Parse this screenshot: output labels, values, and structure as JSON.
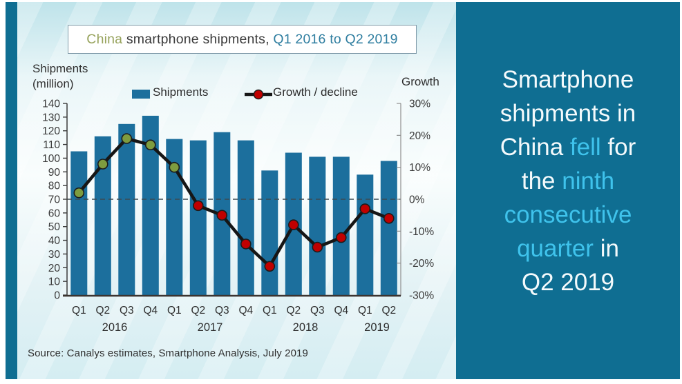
{
  "colors": {
    "teal_dark": "#0f6e92",
    "bar_blue": "#1c6f9d",
    "cyan_highlight": "#3fc3ec",
    "headline_white": "#f4fafc",
    "title_olive": "#97a35c",
    "title_dark": "#3b3b3b",
    "title_teal": "#2f7ea0",
    "line_black": "#161616",
    "marker_positive": "#7e9c3f",
    "marker_negative": "#c00000",
    "marker_outline": "#1c1c1c",
    "zero_line": "#3d4a52",
    "axis_dark": "#3a3a3a",
    "axis_right": "#909090",
    "axis_bottom": "#3b3430"
  },
  "title": {
    "segments": [
      {
        "text": "China ",
        "color_key": "title_olive"
      },
      {
        "text": "smartphone shipments, ",
        "color_key": "title_dark"
      },
      {
        "text": "Q1 2016 to Q2 2019",
        "color_key": "title_teal"
      }
    ]
  },
  "left_axis_title_lines": [
    "Shipments",
    "(million)"
  ],
  "right_axis_title": "Growth",
  "legend": {
    "shipments": "Shipments",
    "growth": "Growth / decline"
  },
  "source": "Source: Canalys estimates, Smartphone  Analysis, July 2019",
  "sidebar": {
    "lines": [
      [
        {
          "t": "Smartphone"
        }
      ],
      [
        {
          "t": "shipments in"
        }
      ],
      [
        {
          "t": "China "
        },
        {
          "t": "fell",
          "hl": true
        },
        {
          "t": " for"
        }
      ],
      [
        {
          "t": "the "
        },
        {
          "t": "ninth",
          "hl": true
        }
      ],
      [
        {
          "t": "consecutive",
          "hl": true
        }
      ],
      [
        {
          "t": "quarter",
          "hl": true
        },
        {
          "t": " in"
        }
      ],
      [
        {
          "t": "Q2 2019"
        }
      ]
    ]
  },
  "chart_data": {
    "type": "bar+line combo",
    "title": "China smartphone shipments, Q1 2016 to Q2 2019",
    "categories": [
      "Q1",
      "Q2",
      "Q3",
      "Q4",
      "Q1",
      "Q2",
      "Q3",
      "Q4",
      "Q1",
      "Q2",
      "Q3",
      "Q4",
      "Q1",
      "Q2"
    ],
    "category_full": [
      "Q1 2016",
      "Q2 2016",
      "Q3 2016",
      "Q4 2016",
      "Q1 2017",
      "Q2 2017",
      "Q3 2017",
      "Q4 2017",
      "Q1 2018",
      "Q2 2018",
      "Q3 2018",
      "Q4 2018",
      "Q1 2019",
      "Q2 2019"
    ],
    "years": [
      {
        "label": "2016",
        "span": [
          0,
          3
        ]
      },
      {
        "label": "2017",
        "span": [
          4,
          7
        ]
      },
      {
        "label": "2018",
        "span": [
          8,
          11
        ]
      },
      {
        "label": "2019",
        "span": [
          12,
          13
        ]
      }
    ],
    "series": [
      {
        "name": "Shipments",
        "type": "bar",
        "axis": "left",
        "values": [
          105,
          116,
          125,
          131,
          114,
          113,
          119,
          113,
          91,
          104,
          101,
          101,
          88,
          98
        ]
      },
      {
        "name": "Growth / decline",
        "type": "line",
        "axis": "right",
        "values_pct": [
          2,
          11,
          19,
          17,
          10,
          -2,
          -5,
          -14,
          -21,
          -8,
          -15,
          -12,
          -3,
          -6
        ]
      }
    ],
    "left_axis": {
      "label": "Shipments (million)",
      "min": 0,
      "max": 140,
      "step": 10
    },
    "right_axis": {
      "label": "Growth",
      "min": -30,
      "max": 30,
      "step": 10,
      "suffix": "%"
    },
    "zero_line_dashed": true,
    "legend_position": "top",
    "grid": false
  }
}
